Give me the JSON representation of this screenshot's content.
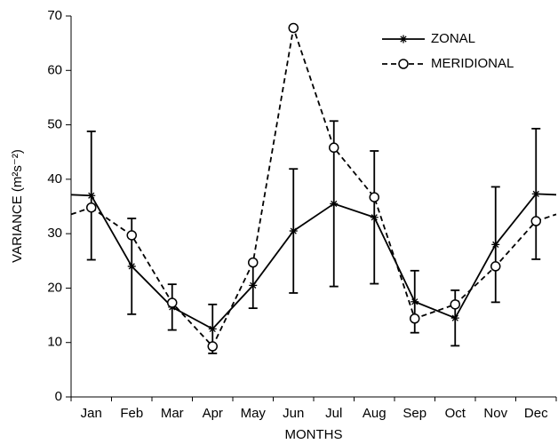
{
  "chart_data": {
    "type": "line",
    "x_label": "MONTHS",
    "y_label": "VARIANCE (m²s⁻²)",
    "categories": [
      "Jan",
      "Feb",
      "Mar",
      "Apr",
      "May",
      "Jun",
      "Jul",
      "Aug",
      "Sep",
      "Oct",
      "Nov",
      "Dec"
    ],
    "series": [
      {
        "name": "ZONAL",
        "color": "#000000",
        "dash": false,
        "marker": "star",
        "values": [
          37,
          24,
          16.5,
          12.5,
          20.5,
          30.5,
          35.5,
          33,
          17.5,
          14.5,
          28,
          37.3
        ],
        "errors": [
          11.8,
          8.8,
          4.2,
          4.5,
          4.2,
          11.4,
          15.2,
          12.2,
          5.7,
          5.1,
          10.6,
          12
        ]
      },
      {
        "name": "MERIDIONAL",
        "color": "#000000",
        "dash": true,
        "marker": "circle",
        "values": [
          34.8,
          29.7,
          17.3,
          9.3,
          24.7,
          67.8,
          45.8,
          36.7,
          14.4,
          17,
          24,
          32.3
        ]
      }
    ],
    "ylim": [
      0,
      70
    ],
    "yticks": [
      0,
      10,
      20,
      30,
      40,
      50,
      60,
      70
    ],
    "legend": "upper right"
  }
}
